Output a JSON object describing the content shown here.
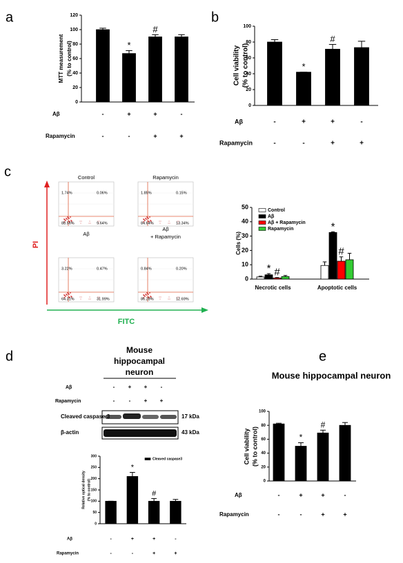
{
  "panel_labels": [
    "a",
    "b",
    "c",
    "d",
    "e"
  ],
  "chart_data": [
    {
      "type": "bar",
      "y_label_lines": [
        "MTT measurement",
        "(% to control)"
      ],
      "color": "#000000",
      "values": [
        100,
        67,
        90,
        90
      ],
      "errors": [
        2,
        4,
        3,
        3
      ],
      "annotations": [
        null,
        "*",
        "#",
        null
      ],
      "ylim": [
        0,
        120
      ],
      "yticks": [
        0,
        20,
        40,
        60,
        80,
        100,
        120
      ],
      "treatments": [
        {
          "name": "Aβ",
          "marks": [
            "-",
            "+",
            "+",
            "-"
          ]
        },
        {
          "name": "Rapamycin",
          "marks": [
            "-",
            "-",
            "+",
            "+"
          ]
        }
      ]
    },
    {
      "type": "bar",
      "y_label_lines": [
        "Cell viability",
        "(% to control)"
      ],
      "color": "#000000",
      "values": [
        80,
        42,
        71,
        73
      ],
      "errors": [
        3,
        0,
        6,
        8
      ],
      "annotations": [
        null,
        "*",
        "#",
        null
      ],
      "ylim": [
        0,
        100
      ],
      "yticks": [
        0,
        20,
        40,
        60,
        80,
        100
      ],
      "treatments": [
        {
          "name": "Aβ",
          "marks": [
            "-",
            "+",
            "+",
            "-"
          ]
        },
        {
          "name": "Rapamycin",
          "marks": [
            "-",
            "-",
            "+",
            "+"
          ]
        }
      ]
    },
    {
      "type": "grouped-bar",
      "y_label_lines": [
        "Cells (%)"
      ],
      "categories": [
        "Necrotic cells",
        "Apoptotic cells"
      ],
      "series": [
        {
          "name": "Control",
          "color": "#ffffff",
          "values": [
            1.5,
            9.5
          ],
          "errors": [
            0.5,
            2.5
          ],
          "annotations": [
            null,
            null
          ]
        },
        {
          "name": "Aβ",
          "color": "#000000",
          "values": [
            3,
            32.5
          ],
          "errors": [
            0.8,
            0.5
          ],
          "annotations": [
            "*",
            "*"
          ]
        },
        {
          "name": "Aβ + Rapamycin",
          "color": "#ff0000",
          "values": [
            0.8,
            12.5
          ],
          "errors": [
            0.3,
            3
          ],
          "annotations": [
            "#",
            "#"
          ]
        },
        {
          "name": "Rapamycin",
          "color": "#33cc33",
          "values": [
            1.8,
            13.5
          ],
          "errors": [
            0.7,
            4.5
          ],
          "annotations": [
            null,
            null
          ]
        }
      ],
      "ylim": [
        0,
        50
      ],
      "yticks": [
        0,
        10,
        20,
        30,
        40,
        50
      ],
      "legend": "upper left"
    },
    {
      "type": "bar",
      "y_label_lines": [
        "Relative optical density",
        "(% to control)"
      ],
      "series": [
        {
          "name": "Cleaved caspase3",
          "color": "#000000",
          "values": [
            100,
            210,
            100,
            100
          ],
          "errors": [
            0,
            18,
            12,
            8
          ],
          "annotations": [
            null,
            "*",
            "#",
            null
          ]
        }
      ],
      "ylim": [
        0,
        300
      ],
      "yticks": [
        0,
        50,
        100,
        150,
        200,
        250,
        300
      ],
      "legend": "upper right",
      "treatments": [
        {
          "name": "Aβ",
          "marks": [
            "-",
            "+",
            "+",
            "-"
          ]
        },
        {
          "name": "Rapamycin",
          "marks": [
            "-",
            "-",
            "+",
            "+"
          ]
        }
      ]
    },
    {
      "type": "bar",
      "title": "Mouse hippocampal neuron",
      "y_label_lines": [
        "Cell viability",
        "(% to control)"
      ],
      "color": "#000000",
      "values": [
        82,
        50,
        69,
        80
      ],
      "errors": [
        1,
        5,
        4,
        4
      ],
      "annotations": [
        null,
        "*",
        "#",
        null
      ],
      "ylim": [
        0,
        100
      ],
      "yticks": [
        0,
        20,
        40,
        60,
        80,
        100
      ],
      "treatments": [
        {
          "name": "Aβ",
          "marks": [
            "-",
            "+",
            "+",
            "-"
          ]
        },
        {
          "name": "Rapamycin",
          "marks": [
            "-",
            "-",
            "+",
            "+"
          ]
        }
      ]
    }
  ],
  "flow_cytometry": {
    "y_label": "PI",
    "x_label": "FITC",
    "plots": [
      {
        "title_lines": [
          "Control"
        ],
        "quadrants": [
          "1.74%",
          "0.06%",
          "88.56%",
          "9.64%"
        ]
      },
      {
        "title_lines": [
          "Rapamycin"
        ],
        "quadrants": [
          "1.85%",
          "0.15%",
          "84.64%",
          "13.34%"
        ]
      },
      {
        "title_lines": [
          "Aβ"
        ],
        "quadrants": [
          "3.22%",
          "0.47%",
          "64.31%",
          "31.99%"
        ]
      },
      {
        "title_lines": [
          "Aβ",
          "+ Rapamycin"
        ],
        "quadrants": [
          "0.84%",
          "0.20%",
          "86.28%",
          "12.69%"
        ]
      }
    ]
  },
  "blot": {
    "title_lines": [
      "Mouse",
      "hippocampal",
      "neuron"
    ],
    "treatments": [
      {
        "name": "Aβ",
        "marks": [
          "-",
          "+",
          "+",
          "-"
        ]
      },
      {
        "name": "Rapamycin",
        "marks": [
          "-",
          "-",
          "+",
          "+"
        ]
      }
    ],
    "bands": [
      {
        "name": "Cleaved caspase 3",
        "size": "17 kDa"
      },
      {
        "name": "β-actin",
        "size": "43 kDa"
      }
    ]
  }
}
